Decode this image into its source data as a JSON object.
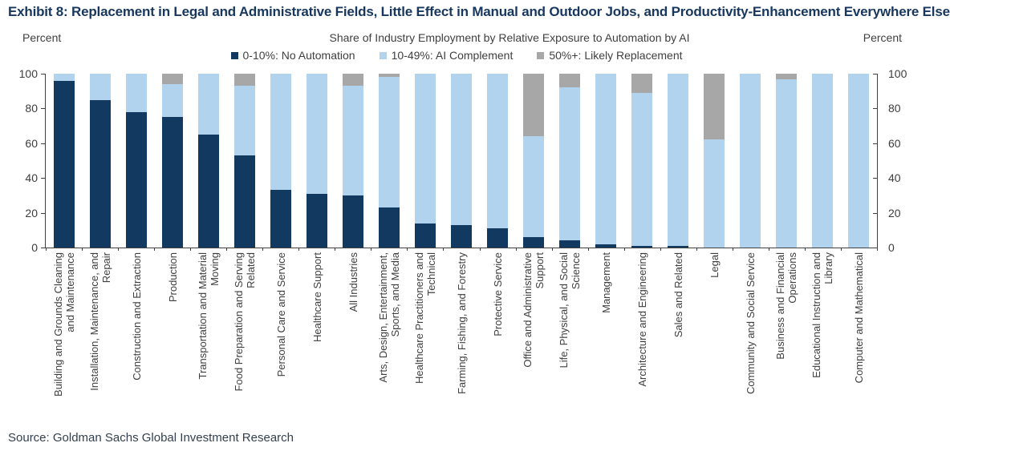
{
  "header": {
    "title": "Exhibit 8: Replacement in Legal and Administrative Fields, Little Effect in Manual and Outdoor Jobs, and Productivity-Enhancement Everywhere Else",
    "subtitle": "Share of Industry Employment by Relative Exposure to Automation by AI",
    "left_axis_unit": "Percent",
    "right_axis_unit": "Percent"
  },
  "legend": [
    {
      "label": "0-10%: No Automation",
      "color": "#123A61"
    },
    {
      "label": "10-49%: AI Complement",
      "color": "#B1D3ED"
    },
    {
      "label": "50%+: Likely Replacement",
      "color": "#A7A7A7"
    }
  ],
  "source": "Source: Goldman Sachs Global Investment Research",
  "colors": {
    "navy": "#123A61",
    "light_blue": "#B1D3ED",
    "gray": "#A7A7A7",
    "axis": "#404040",
    "title_text": "#17375E"
  },
  "chart_data": {
    "type": "bar",
    "stacked": true,
    "title": "Share of Industry Employment by Relative Exposure to Automation by AI",
    "xlabel": "",
    "ylabel": "Percent",
    "ylim": [
      0,
      100
    ],
    "yticks": [
      0,
      20,
      40,
      60,
      80,
      100
    ],
    "grid": false,
    "legend_position": "top-center",
    "categories": [
      "Building and Grounds Cleaning\nand Maintenance",
      "Installation, Maintenance, and\nRepair",
      "Construction and Extraction",
      "Production",
      "Transportation and Material\nMoving",
      "Food Preparation and Serving\nRelated",
      "Personal Care and Service",
      "Healthcare Support",
      "All Industries",
      "Arts, Design, Entertainment,\nSports, and Media",
      "Healthcare Practitioners and\nTechnical",
      "Farming, Fishing, and Forestry",
      "Protective Service",
      "Office and Administrative\nSupport",
      "Life, Physical, and Social\nScience",
      "Management",
      "Architecture and Engineering",
      "Sales and Related",
      "Legal",
      "Community and Social Service",
      "Business and Financial\nOperations",
      "Educational Instruction and\nLibrary",
      "Computer and Mathematical"
    ],
    "series": [
      {
        "name": "0-10%: No Automation",
        "color": "#123A61",
        "values": [
          96,
          85,
          78,
          75,
          65,
          53,
          33,
          31,
          30,
          23,
          14,
          13,
          11,
          6,
          4,
          2,
          1,
          1,
          0,
          0,
          0,
          0,
          0
        ]
      },
      {
        "name": "10-49%: AI Complement",
        "color": "#B1D3ED",
        "values": [
          4,
          15,
          22,
          19,
          35,
          40,
          67,
          69,
          63,
          75,
          86,
          87,
          89,
          58,
          88,
          98,
          88,
          99,
          62,
          100,
          97,
          100,
          100
        ]
      },
      {
        "name": "50%+: Likely Replacement",
        "color": "#A7A7A7",
        "values": [
          0,
          0,
          0,
          6,
          0,
          7,
          0,
          0,
          7,
          2,
          0,
          0,
          0,
          36,
          8,
          0,
          11,
          0,
          38,
          0,
          3,
          0,
          0
        ]
      }
    ]
  }
}
